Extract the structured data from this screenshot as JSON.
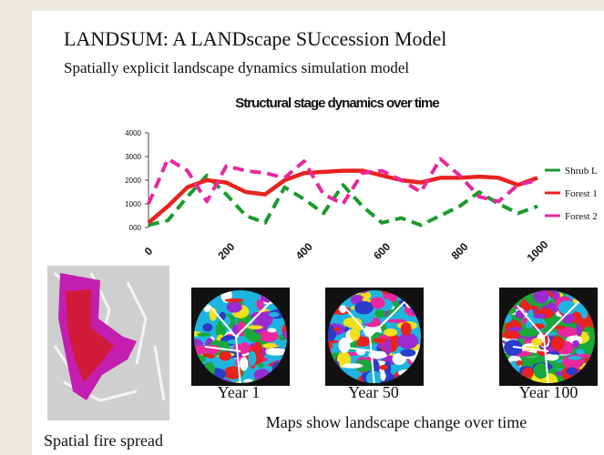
{
  "slide": {
    "title": "LANDSUM: A LANDscape SUccession Model",
    "subtitle": "Spatially explicit landscape dynamics simulation model",
    "fire_caption": "Spatial fire spread",
    "maps": [
      "Year 1",
      "Year 50",
      "Year 100"
    ],
    "maps_caption": "Maps show landscape change over time"
  },
  "chart_data": {
    "type": "line",
    "title": "Structural stage dynamics over time",
    "x": [
      0,
      50,
      100,
      150,
      200,
      250,
      300,
      350,
      400,
      450,
      500,
      550,
      600,
      650,
      700,
      750,
      800,
      850,
      900,
      950,
      1000
    ],
    "series": [
      {
        "name": "Shrub L",
        "color": "#1a9a2e",
        "dashed": true,
        "values": [
          100,
          300,
          1300,
          2200,
          1400,
          500,
          200,
          1700,
          1200,
          600,
          1800,
          900,
          200,
          400,
          100,
          500,
          900,
          1500,
          1000,
          600,
          900
        ]
      },
      {
        "name": "Forest 1",
        "color": "#e8231f",
        "dashed": false,
        "values": [
          200,
          900,
          1700,
          2000,
          1900,
          1500,
          1400,
          2000,
          2300,
          2350,
          2400,
          2400,
          2200,
          2000,
          1900,
          2100,
          2100,
          2150,
          2100,
          1800,
          2100
        ]
      },
      {
        "name": "Forest 2",
        "color": "#e8289c",
        "dashed": true,
        "values": [
          1000,
          2900,
          2400,
          1100,
          2600,
          2400,
          2300,
          2100,
          2800,
          1400,
          1000,
          2300,
          2400,
          2000,
          1500,
          2900,
          2200,
          1300,
          1100,
          1800,
          2000
        ]
      }
    ],
    "xlim": [
      0,
      1000
    ],
    "xticks": [
      0,
      200,
      400,
      600,
      800,
      1000
    ],
    "ylim": [
      0,
      4000
    ],
    "yticks": [
      {
        "value": 0,
        "label": "000"
      },
      1000,
      2000,
      3000,
      4000
    ],
    "grid": false,
    "legend": "right"
  }
}
